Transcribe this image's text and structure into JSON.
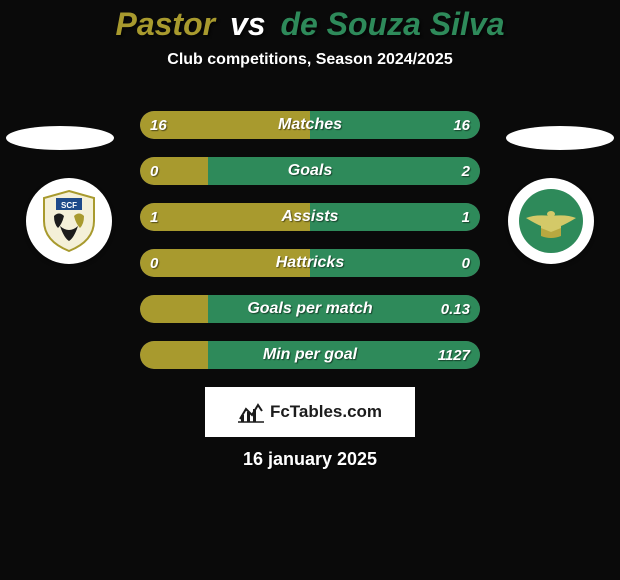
{
  "background_color": "#0a0a0a",
  "header": {
    "player1": "Pastor",
    "vs": "vs",
    "player2": "de Souza Silva",
    "player1_color": "#a89a2e",
    "player2_color": "#2e8a5a",
    "subtitle": "Club competitions, Season 2024/2025"
  },
  "colors": {
    "left_team": "#a89a2e",
    "right_team": "#2e8a5a",
    "bar_bg": "#5a5a5a"
  },
  "bars": [
    {
      "label": "Matches",
      "left": "16",
      "right": "16",
      "left_pct": 50,
      "right_pct": 50
    },
    {
      "label": "Goals",
      "left": "0",
      "right": "2",
      "left_pct": 20,
      "right_pct": 80
    },
    {
      "label": "Assists",
      "left": "1",
      "right": "1",
      "left_pct": 50,
      "right_pct": 50
    },
    {
      "label": "Hattricks",
      "left": "0",
      "right": "0",
      "left_pct": 50,
      "right_pct": 50
    },
    {
      "label": "Goals per match",
      "left": "",
      "right": "0.13",
      "left_pct": 20,
      "right_pct": 80
    },
    {
      "label": "Min per goal",
      "left": "",
      "right": "1127",
      "left_pct": 20,
      "right_pct": 80
    }
  ],
  "footer": {
    "brand": "FcTables.com",
    "date": "16 january 2025"
  }
}
